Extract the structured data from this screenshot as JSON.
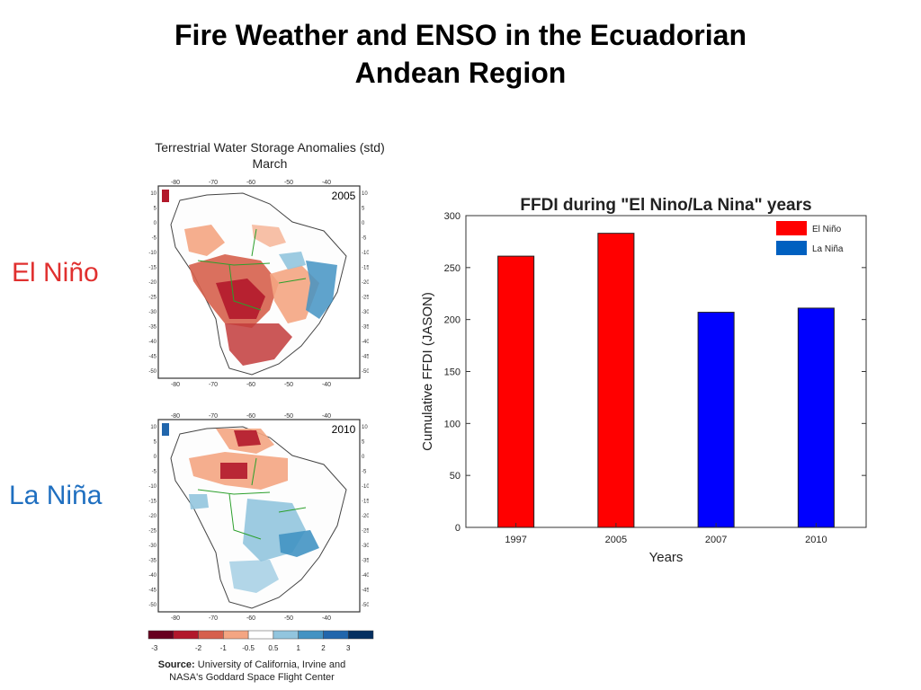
{
  "slide": {
    "title_line1": "Fire Weather and ENSO in the Ecuadorian",
    "title_line2": "Andean Region",
    "label_el_nino": "El Niño",
    "label_la_nina": "La Niña"
  },
  "maps": {
    "caption_line1": "Terrestrial Water Storage Anomalies (std)",
    "caption_line2": "March",
    "panel_years": [
      "2005",
      "2010"
    ],
    "lon_ticks": [
      "-80",
      "-70",
      "-60",
      "-50",
      "-40"
    ],
    "lat_ticks": [
      "10",
      "5",
      "0",
      "-5",
      "-10",
      "-15",
      "-20",
      "-25",
      "-30",
      "-35",
      "-40",
      "-45",
      "-50"
    ],
    "colorbar_ticks": [
      "-3",
      "-2",
      "-1",
      "-0.5",
      "0.5",
      "1",
      "2",
      "3"
    ],
    "colorbar_colors": [
      "#67001f",
      "#b2182b",
      "#d6604d",
      "#f4a582",
      "#ffffff",
      "#92c5de",
      "#4393c3",
      "#2166ac",
      "#053061"
    ]
  },
  "source": {
    "label": "Source:",
    "line1": "University of California, Irvine and",
    "line2": "NASA's Goddard Space Flight Center"
  },
  "chart_data": {
    "type": "bar",
    "title": "FFDI during \"El Nino/La Nina\" years",
    "xlabel": "Years",
    "ylabel": "Cumulative FFDI (JASON)",
    "categories": [
      "1997",
      "2005",
      "2007",
      "2010"
    ],
    "values": [
      261,
      283,
      207,
      211
    ],
    "bar_colors": [
      "#ff0000",
      "#ff0000",
      "#0000ff",
      "#0000ff"
    ],
    "ylim": [
      0,
      300
    ],
    "yticks": [
      0,
      50,
      100,
      150,
      200,
      250,
      300
    ],
    "grid": false,
    "legend": {
      "position": "top-right",
      "entries": [
        {
          "label": "El Niño",
          "color": "#ff0000"
        },
        {
          "label": "La Niña",
          "color": "#0060c0"
        }
      ]
    }
  }
}
